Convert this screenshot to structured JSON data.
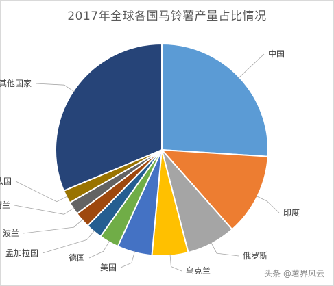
{
  "chart_data": {
    "type": "pie",
    "title": "2017年全球各国马铃薯产量占比情况",
    "start_angle_deg": 0,
    "direction": "clockwise",
    "slices": [
      {
        "label": "中国",
        "value": 26.0,
        "color": "#5b9bd5",
        "text_side": "right"
      },
      {
        "label": "印度",
        "value": 12.5,
        "color": "#ed7d31",
        "text_side": "right"
      },
      {
        "label": "俄罗斯",
        "value": 7.5,
        "color": "#a5a5a5",
        "text_side": "right"
      },
      {
        "label": "乌克兰",
        "value": 5.5,
        "color": "#ffc000",
        "text_side": "right"
      },
      {
        "label": "美国",
        "value": 5.3,
        "color": "#4472c4",
        "text_side": "left"
      },
      {
        "label": "德国",
        "value": 3.0,
        "color": "#70ad47",
        "text_side": "left"
      },
      {
        "label": "孟加拉国",
        "value": 2.5,
        "color": "#255e91",
        "text_side": "left"
      },
      {
        "label": "波兰",
        "value": 2.4,
        "color": "#9e480e",
        "text_side": "left"
      },
      {
        "label": "荷兰",
        "value": 2.0,
        "color": "#636363",
        "text_side": "left"
      },
      {
        "label": "法国",
        "value": 2.0,
        "color": "#997300",
        "text_side": "left"
      },
      {
        "label": "其他国家",
        "value": 31.3,
        "color": "#264478",
        "text_side": "left"
      }
    ],
    "legend": "none"
  },
  "watermark": "头条 @薯界风云"
}
